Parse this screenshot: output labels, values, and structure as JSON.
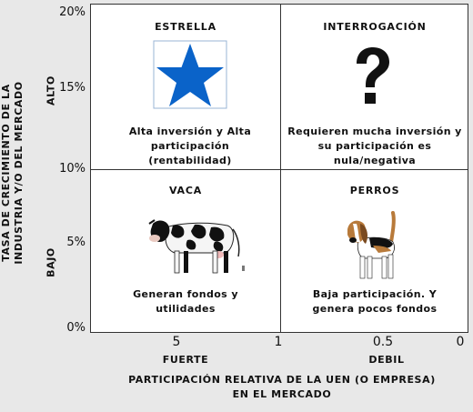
{
  "y_axis": {
    "title": "TASA DE CRECIMIENTO DE LA INDUSTRIA Y/O DEL MERCADO",
    "ticks": [
      "20%",
      "15%",
      "10%",
      "5%",
      "0%"
    ],
    "high_label": "ALTO",
    "low_label": "BAJO"
  },
  "x_axis": {
    "title": "PARTICIPACIÓN RELATIVA DE LA UEN (O EMPRESA) EN EL MERCADO",
    "ticks": [
      "5",
      "1",
      "0.5",
      "0"
    ],
    "strong_label": "FUERTE",
    "weak_label": "DEBIL"
  },
  "quadrants": {
    "star": {
      "title": "ESTRELLA",
      "text": "Alta inversión y Alta\nparticipación\n(rentabilidad)",
      "icon": "star-icon",
      "color": "#0a63c9"
    },
    "question": {
      "title": "INTERROGACIÓN",
      "text": "Requieren mucha inversión y\nsu participación es\nnula/negativa",
      "icon": "question-mark-icon"
    },
    "cow": {
      "title": "VACA",
      "text": "Generan fondos y\nutilidades",
      "icon": "cow-icon"
    },
    "dog": {
      "title": "PERROS",
      "text": "Baja participación. Y\ngenera pocos fondos",
      "icon": "dog-icon"
    }
  }
}
